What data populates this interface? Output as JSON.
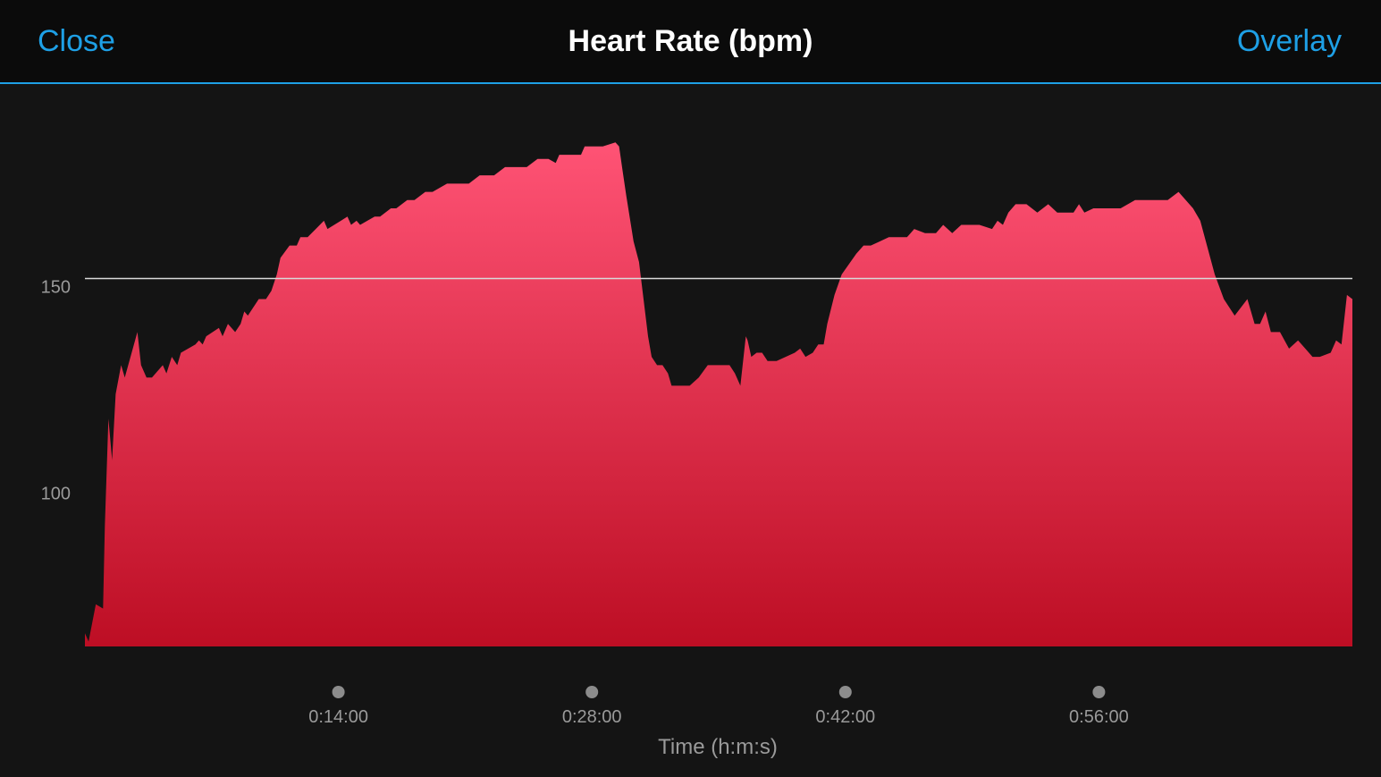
{
  "header": {
    "close_label": "Close",
    "title": "Heart Rate (bpm)",
    "overlay_label": "Overlay"
  },
  "colors": {
    "accent": "#1ea0e6",
    "area_top": "#ff5375",
    "area_bottom": "#bd0e24",
    "reference_line": "#d9d9d9"
  },
  "chart_data": {
    "type": "area",
    "xlabel": "Time (h:m:s)",
    "ylabel": "",
    "x_unit": "minutes",
    "xlim": [
      0,
      70
    ],
    "ylim": [
      62.8,
      187
    ],
    "y_ticks": [
      {
        "value": 100,
        "label": "100"
      },
      {
        "value": 150,
        "label": "150"
      }
    ],
    "x_ticks": [
      {
        "value": 14,
        "label": "0:14:00"
      },
      {
        "value": 28,
        "label": "0:28:00"
      },
      {
        "value": 42,
        "label": "0:42:00"
      },
      {
        "value": 56,
        "label": "0:56:00"
      }
    ],
    "reference_line_y": 152,
    "grid": false,
    "series": [
      {
        "values": [
          [
            0,
            66
          ],
          [
            0.2,
            64
          ],
          [
            0.6,
            73
          ],
          [
            1.0,
            72
          ],
          [
            1.1,
            92
          ],
          [
            1.3,
            118
          ],
          [
            1.5,
            108
          ],
          [
            1.7,
            124
          ],
          [
            2.0,
            131
          ],
          [
            2.2,
            128
          ],
          [
            2.9,
            139
          ],
          [
            3.1,
            131
          ],
          [
            3.4,
            128
          ],
          [
            3.7,
            128
          ],
          [
            4.3,
            131
          ],
          [
            4.5,
            129
          ],
          [
            4.8,
            133
          ],
          [
            5.1,
            131
          ],
          [
            5.3,
            134
          ],
          [
            6.1,
            136
          ],
          [
            6.3,
            137
          ],
          [
            6.5,
            136
          ],
          [
            6.7,
            138
          ],
          [
            7.4,
            140
          ],
          [
            7.6,
            138
          ],
          [
            7.9,
            141
          ],
          [
            8.3,
            139
          ],
          [
            8.6,
            141
          ],
          [
            8.8,
            144
          ],
          [
            9.0,
            143
          ],
          [
            9.6,
            147
          ],
          [
            10.0,
            147
          ],
          [
            10.3,
            149
          ],
          [
            10.6,
            153
          ],
          [
            10.8,
            157
          ],
          [
            11.3,
            160
          ],
          [
            11.7,
            160
          ],
          [
            11.9,
            162
          ],
          [
            12.3,
            162
          ],
          [
            13.2,
            166
          ],
          [
            13.4,
            164
          ],
          [
            14.5,
            167
          ],
          [
            14.7,
            165
          ],
          [
            15.0,
            166
          ],
          [
            15.2,
            165
          ],
          [
            16.0,
            167
          ],
          [
            16.3,
            167
          ],
          [
            16.9,
            169
          ],
          [
            17.2,
            169
          ],
          [
            17.8,
            171
          ],
          [
            18.2,
            171
          ],
          [
            18.8,
            173
          ],
          [
            19.2,
            173
          ],
          [
            20.0,
            175
          ],
          [
            21.2,
            175
          ],
          [
            21.8,
            177
          ],
          [
            22.6,
            177
          ],
          [
            23.2,
            179
          ],
          [
            24.4,
            179
          ],
          [
            25.0,
            181
          ],
          [
            25.6,
            181
          ],
          [
            26.0,
            180
          ],
          [
            26.2,
            182
          ],
          [
            27.4,
            182
          ],
          [
            27.6,
            184
          ],
          [
            28.6,
            184
          ],
          [
            29.3,
            185
          ],
          [
            29.5,
            184
          ],
          [
            29.7,
            178
          ],
          [
            29.9,
            172
          ],
          [
            30.3,
            161
          ],
          [
            30.6,
            156
          ],
          [
            31.1,
            138
          ],
          [
            31.3,
            133
          ],
          [
            31.6,
            131
          ],
          [
            31.9,
            131
          ],
          [
            32.2,
            129
          ],
          [
            32.4,
            126
          ],
          [
            33.4,
            126
          ],
          [
            33.9,
            128
          ],
          [
            34.4,
            131
          ],
          [
            34.8,
            131
          ],
          [
            35.6,
            131
          ],
          [
            35.9,
            129
          ],
          [
            36.2,
            126
          ],
          [
            36.5,
            138
          ],
          [
            36.6,
            137
          ],
          [
            36.8,
            133
          ],
          [
            37.1,
            134
          ],
          [
            37.4,
            134
          ],
          [
            37.7,
            132
          ],
          [
            38.2,
            132
          ],
          [
            39.2,
            134
          ],
          [
            39.5,
            135
          ],
          [
            39.8,
            133
          ],
          [
            40.2,
            134
          ],
          [
            40.5,
            136
          ],
          [
            40.8,
            136
          ],
          [
            41.0,
            141
          ],
          [
            41.4,
            148
          ],
          [
            41.8,
            153
          ],
          [
            42.6,
            158
          ],
          [
            43.0,
            160
          ],
          [
            43.4,
            160
          ],
          [
            43.9,
            161
          ],
          [
            44.4,
            162
          ],
          [
            45.4,
            162
          ],
          [
            45.8,
            164
          ],
          [
            46.4,
            163
          ],
          [
            47.0,
            163
          ],
          [
            47.4,
            165
          ],
          [
            47.9,
            163
          ],
          [
            48.4,
            165
          ],
          [
            49.4,
            165
          ],
          [
            50.1,
            164
          ],
          [
            50.4,
            166
          ],
          [
            50.7,
            165
          ],
          [
            51.0,
            168
          ],
          [
            51.4,
            170
          ],
          [
            52.0,
            170
          ],
          [
            52.6,
            168
          ],
          [
            53.2,
            170
          ],
          [
            53.7,
            168
          ],
          [
            54.6,
            168
          ],
          [
            54.9,
            170
          ],
          [
            55.2,
            168
          ],
          [
            55.7,
            169
          ],
          [
            57.2,
            169
          ],
          [
            58.0,
            171
          ],
          [
            59.8,
            171
          ],
          [
            60.4,
            173
          ],
          [
            61.2,
            169
          ],
          [
            61.6,
            166
          ],
          [
            62.4,
            153
          ],
          [
            62.9,
            147
          ],
          [
            63.5,
            143
          ],
          [
            64.2,
            147
          ],
          [
            64.6,
            141
          ],
          [
            64.9,
            141
          ],
          [
            65.2,
            144
          ],
          [
            65.5,
            139
          ],
          [
            66.0,
            139
          ],
          [
            66.5,
            135
          ],
          [
            67.0,
            137
          ],
          [
            67.4,
            135
          ],
          [
            67.8,
            133
          ],
          [
            68.2,
            133
          ],
          [
            68.8,
            134
          ],
          [
            69.1,
            137
          ],
          [
            69.4,
            136
          ],
          [
            69.7,
            148
          ],
          [
            70.0,
            147
          ]
        ]
      }
    ]
  }
}
